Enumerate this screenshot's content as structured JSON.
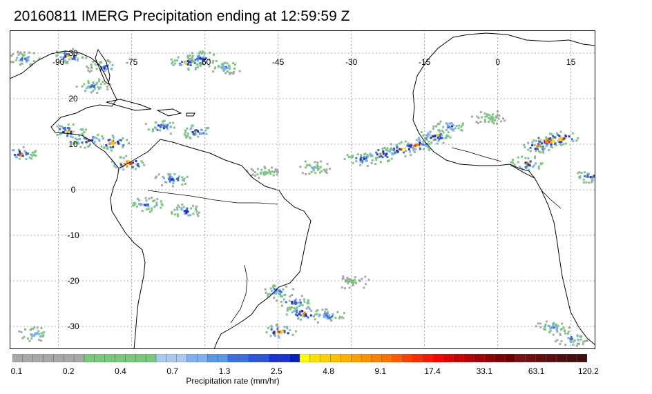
{
  "title": "20160811 IMERG Precipitation ending at 12:59:59 Z",
  "map": {
    "lon_labels": [
      "-90",
      "-75",
      "-60",
      "-45",
      "-30",
      "-15",
      "0",
      "15"
    ],
    "lat_labels": [
      "30",
      "20",
      "10",
      "0",
      "-10",
      "-20",
      "-30"
    ],
    "gridline_style": "dotted",
    "extent": {
      "lon_min": -100,
      "lon_max": 20,
      "lat_min": -35,
      "lat_max": 35
    }
  },
  "precip_cells": [
    {
      "lon": -97,
      "lat": 29,
      "intensity": 0.5
    },
    {
      "lon": -88,
      "lat": 29.5,
      "intensity": 0.65
    },
    {
      "lon": -81,
      "lat": 27,
      "intensity": 0.55
    },
    {
      "lon": -83,
      "lat": 23,
      "intensity": 0.5
    },
    {
      "lon": -64,
      "lat": 28,
      "intensity": 0.7
    },
    {
      "lon": -61,
      "lat": 29,
      "intensity": 0.6
    },
    {
      "lon": -56,
      "lat": 27,
      "intensity": 0.45
    },
    {
      "lon": -88,
      "lat": 13,
      "intensity": 0.75
    },
    {
      "lon": -84,
      "lat": 11,
      "intensity": 0.7
    },
    {
      "lon": -79,
      "lat": 10.5,
      "intensity": 0.8
    },
    {
      "lon": -76,
      "lat": 6,
      "intensity": 0.9
    },
    {
      "lon": -69,
      "lat": 14,
      "intensity": 0.6
    },
    {
      "lon": -62,
      "lat": 13,
      "intensity": 0.65
    },
    {
      "lon": -98,
      "lat": 8,
      "intensity": 0.7
    },
    {
      "lon": -67,
      "lat": 2.5,
      "intensity": 0.6
    },
    {
      "lon": -72,
      "lat": -3,
      "intensity": 0.55
    },
    {
      "lon": -64,
      "lat": -4.5,
      "intensity": 0.6
    },
    {
      "lon": -48,
      "lat": 4,
      "intensity": 0.35
    },
    {
      "lon": -38,
      "lat": 5,
      "intensity": 0.4
    },
    {
      "lon": -28,
      "lat": 7,
      "intensity": 0.6
    },
    {
      "lon": -24,
      "lat": 8,
      "intensity": 0.7
    },
    {
      "lon": -20,
      "lat": 9,
      "intensity": 0.75
    },
    {
      "lon": -17,
      "lat": 10,
      "intensity": 0.8
    },
    {
      "lon": -13,
      "lat": 12,
      "intensity": 0.7
    },
    {
      "lon": -10,
      "lat": 14,
      "intensity": 0.55
    },
    {
      "lon": 8,
      "lat": 10,
      "intensity": 0.75
    },
    {
      "lon": 10,
      "lat": 11,
      "intensity": 0.85
    },
    {
      "lon": 13,
      "lat": 11.5,
      "intensity": 0.8
    },
    {
      "lon": 6,
      "lat": 6,
      "intensity": 0.7
    },
    {
      "lon": 19,
      "lat": 3,
      "intensity": 0.6
    },
    {
      "lon": -2,
      "lat": 16,
      "intensity": 0.35
    },
    {
      "lon": -45,
      "lat": -22,
      "intensity": 0.55
    },
    {
      "lon": -42,
      "lat": -24.5,
      "intensity": 0.6
    },
    {
      "lon": -40,
      "lat": -27,
      "intensity": 0.75
    },
    {
      "lon": -35,
      "lat": -27.5,
      "intensity": 0.55
    },
    {
      "lon": -45,
      "lat": -31,
      "intensity": 0.8
    },
    {
      "lon": -95,
      "lat": -31.5,
      "intensity": 0.45
    },
    {
      "lon": 11,
      "lat": -30,
      "intensity": 0.45
    },
    {
      "lon": 15,
      "lat": -32.5,
      "intensity": 0.5
    },
    {
      "lon": -30,
      "lat": -20,
      "intensity": 0.25
    }
  ],
  "colorbar": {
    "labels": [
      "0.1",
      "0.2",
      "0.4",
      "0.7",
      "1.3",
      "2.5",
      "4.8",
      "9.1",
      "17.4",
      "33.1",
      "63.1",
      "120.2"
    ],
    "title": "Precipitation rate (mm/hr)",
    "colors": [
      "#a8a8a8",
      "#a8a8a8",
      "#a8a8a8",
      "#a8a8a8",
      "#a8a8a8",
      "#a8a8a8",
      "#a8a8a8",
      "#7ac97a",
      "#7ac97a",
      "#7ac97a",
      "#7ac97a",
      "#7ac97a",
      "#7ac97a",
      "#7ac97a",
      "#aac8f0",
      "#aac8f0",
      "#aac8f0",
      "#7fb1ee",
      "#7fb1ee",
      "#5a97e8",
      "#5a97e8",
      "#3b6fe0",
      "#3b6fe0",
      "#2e55dc",
      "#2e55dc",
      "#1a33d6",
      "#1a33d6",
      "#0a1ec8",
      "#ffff00",
      "#ffe000",
      "#ffd000",
      "#ffc000",
      "#ffb000",
      "#ffa000",
      "#ff9000",
      "#ff8000",
      "#ff7000",
      "#ff5a00",
      "#ff4000",
      "#ff2a00",
      "#ff1400",
      "#ff0000",
      "#e00000",
      "#cc0000",
      "#b80000",
      "#a40000",
      "#900000",
      "#800000",
      "#700000",
      "#7a1010",
      "#6e1010",
      "#641010",
      "#5a1010",
      "#501010",
      "#4a1010",
      "#401010"
    ]
  }
}
